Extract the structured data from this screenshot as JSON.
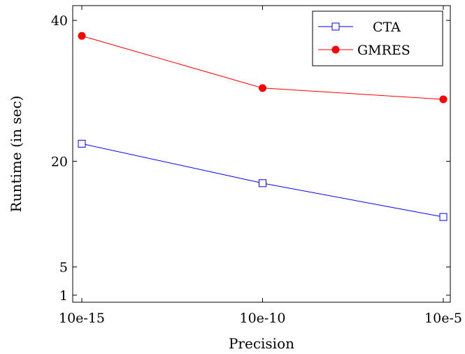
{
  "chart_data": {
    "type": "line",
    "title": "",
    "xlabel": "Precision",
    "ylabel": "Runtime (in sec)",
    "categories": [
      "10e-15",
      "10e-10",
      "10e-5"
    ],
    "yticks": [
      1,
      5,
      20,
      40
    ],
    "ylim": [
      0,
      42
    ],
    "grid": false,
    "legend_position": "top-right",
    "series": [
      {
        "name": "CTA",
        "values": [
          22.5,
          16.9,
          12.1
        ],
        "color": "#0000ff",
        "marker": "open-square"
      },
      {
        "name": "GMRES",
        "values": [
          37.8,
          30.4,
          28.8
        ],
        "color": "#ff0000",
        "marker": "filled-circle"
      }
    ]
  }
}
